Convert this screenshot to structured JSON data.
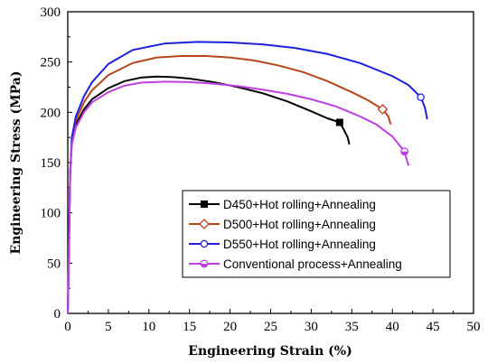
{
  "chart_data": {
    "type": "line",
    "xlabel": "Engineering Strain (%)",
    "ylabel": "Engineering Stress (MPa)",
    "xlim": [
      0,
      50
    ],
    "ylim": [
      0,
      300
    ],
    "xticks": [
      0,
      5,
      10,
      15,
      20,
      25,
      30,
      35,
      40,
      45,
      50
    ],
    "yticks": [
      0,
      50,
      100,
      150,
      200,
      250,
      300
    ],
    "grid": false,
    "legend_position": "bottom-right",
    "series": [
      {
        "name": "D450+Hot rolling+Annealing",
        "color": "#000000",
        "marker": "square-filled",
        "marker_at": [
          33.5,
          190
        ],
        "points": [
          [
            0,
            0
          ],
          [
            0.1,
            40
          ],
          [
            0.2,
            95
          ],
          [
            0.3,
            140
          ],
          [
            0.5,
            170
          ],
          [
            1,
            188
          ],
          [
            2,
            203
          ],
          [
            3,
            213
          ],
          [
            5,
            224
          ],
          [
            7,
            231
          ],
          [
            9,
            234.5
          ],
          [
            11,
            235.5
          ],
          [
            13,
            235
          ],
          [
            15,
            233.5
          ],
          [
            18,
            230
          ],
          [
            21,
            225
          ],
          [
            24,
            219
          ],
          [
            27,
            211
          ],
          [
            30,
            201
          ],
          [
            32,
            194
          ],
          [
            33.5,
            190
          ],
          [
            34,
            183
          ],
          [
            34.5,
            175
          ],
          [
            34.7,
            168
          ]
        ]
      },
      {
        "name": "D500+Hot rolling+Annealing",
        "color": "#b5461a",
        "marker": "diamond-open",
        "marker_at": [
          38.8,
          203
        ],
        "points": [
          [
            0,
            0
          ],
          [
            0.1,
            40
          ],
          [
            0.2,
            95
          ],
          [
            0.3,
            140
          ],
          [
            0.5,
            172
          ],
          [
            1,
            192
          ],
          [
            2,
            210
          ],
          [
            3,
            222
          ],
          [
            5,
            237
          ],
          [
            8,
            249
          ],
          [
            11,
            254.5
          ],
          [
            14,
            256
          ],
          [
            17,
            256
          ],
          [
            20,
            254.5
          ],
          [
            23,
            251.5
          ],
          [
            26,
            246.5
          ],
          [
            29,
            240
          ],
          [
            32,
            231
          ],
          [
            35,
            220
          ],
          [
            37,
            212
          ],
          [
            38.8,
            203
          ],
          [
            39.5,
            196
          ],
          [
            39.8,
            188
          ]
        ]
      },
      {
        "name": "D550+Hot rolling+Annealing",
        "color": "#1f1fdc",
        "marker": "circle-open",
        "marker_at": [
          43.5,
          215
        ],
        "points": [
          [
            0,
            0
          ],
          [
            0.1,
            40
          ],
          [
            0.2,
            95
          ],
          [
            0.3,
            140
          ],
          [
            0.5,
            175
          ],
          [
            1,
            196
          ],
          [
            2,
            216
          ],
          [
            3,
            230
          ],
          [
            5,
            248
          ],
          [
            8,
            262
          ],
          [
            12,
            268.5
          ],
          [
            16,
            270
          ],
          [
            20,
            269.5
          ],
          [
            24,
            267.5
          ],
          [
            28,
            264
          ],
          [
            32,
            258
          ],
          [
            36,
            249
          ],
          [
            40,
            236
          ],
          [
            42,
            227
          ],
          [
            43.5,
            215
          ],
          [
            44,
            205
          ],
          [
            44.3,
            193
          ]
        ]
      },
      {
        "name": "Conventional process+Annealing",
        "color": "#bf3fe0",
        "marker": "circle-half",
        "marker_at": [
          41.5,
          161
        ],
        "points": [
          [
            0,
            0
          ],
          [
            0.1,
            40
          ],
          [
            0.2,
            95
          ],
          [
            0.3,
            140
          ],
          [
            0.5,
            168
          ],
          [
            1,
            185
          ],
          [
            2,
            200
          ],
          [
            3,
            210
          ],
          [
            5,
            220
          ],
          [
            7,
            226.5
          ],
          [
            9,
            229.5
          ],
          [
            12,
            230.5
          ],
          [
            15,
            230
          ],
          [
            18,
            228.5
          ],
          [
            21,
            226
          ],
          [
            24,
            222.5
          ],
          [
            27,
            218.5
          ],
          [
            30,
            213
          ],
          [
            33,
            206
          ],
          [
            36,
            196
          ],
          [
            38,
            188
          ],
          [
            40,
            176
          ],
          [
            41,
            166
          ],
          [
            41.5,
            161
          ],
          [
            41.8,
            152
          ],
          [
            42,
            147
          ]
        ]
      }
    ]
  }
}
